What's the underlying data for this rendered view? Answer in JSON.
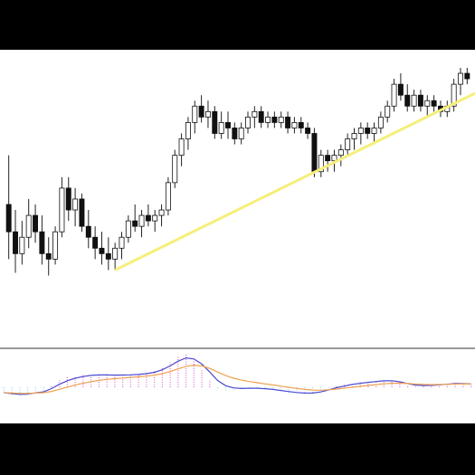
{
  "chart_data": [
    {
      "type": "candlestick",
      "title": "",
      "xlabel": "",
      "ylabel": "",
      "ylim": [
        0,
        100
      ],
      "grid": false,
      "candles": [
        [
          50,
          68,
          30,
          40
        ],
        [
          40,
          48,
          25,
          32
        ],
        [
          32,
          44,
          28,
          38
        ],
        [
          38,
          52,
          34,
          46
        ],
        [
          46,
          50,
          36,
          40
        ],
        [
          40,
          46,
          28,
          32
        ],
        [
          32,
          38,
          24,
          30
        ],
        [
          30,
          42,
          28,
          40
        ],
        [
          40,
          60,
          38,
          56
        ],
        [
          56,
          60,
          44,
          48
        ],
        [
          48,
          56,
          42,
          52
        ],
        [
          52,
          54,
          40,
          42
        ],
        [
          42,
          48,
          34,
          38
        ],
        [
          38,
          42,
          30,
          34
        ],
        [
          34,
          40,
          28,
          32
        ],
        [
          32,
          38,
          26,
          30
        ],
        [
          30,
          36,
          26,
          34
        ],
        [
          34,
          40,
          30,
          38
        ],
        [
          38,
          46,
          36,
          44
        ],
        [
          44,
          50,
          40,
          42
        ],
        [
          42,
          48,
          38,
          46
        ],
        [
          46,
          50,
          42,
          44
        ],
        [
          44,
          48,
          40,
          46
        ],
        [
          46,
          50,
          42,
          48
        ],
        [
          48,
          60,
          46,
          58
        ],
        [
          58,
          70,
          56,
          68
        ],
        [
          68,
          76,
          64,
          74
        ],
        [
          74,
          82,
          70,
          80
        ],
        [
          80,
          88,
          76,
          86
        ],
        [
          86,
          90,
          80,
          82
        ],
        [
          82,
          88,
          78,
          84
        ],
        [
          84,
          86,
          74,
          76
        ],
        [
          76,
          84,
          74,
          80
        ],
        [
          80,
          84,
          74,
          78
        ],
        [
          78,
          80,
          72,
          74
        ],
        [
          74,
          80,
          72,
          78
        ],
        [
          78,
          84,
          76,
          82
        ],
        [
          82,
          86,
          78,
          84
        ],
        [
          84,
          86,
          78,
          80
        ],
        [
          80,
          84,
          78,
          82
        ],
        [
          82,
          84,
          78,
          80
        ],
        [
          80,
          84,
          78,
          82
        ],
        [
          82,
          84,
          76,
          78
        ],
        [
          78,
          82,
          76,
          80
        ],
        [
          80,
          82,
          76,
          78
        ],
        [
          78,
          80,
          74,
          76
        ],
        [
          76,
          78,
          60,
          62
        ],
        [
          62,
          70,
          60,
          68
        ],
        [
          68,
          70,
          62,
          66
        ],
        [
          66,
          70,
          62,
          68
        ],
        [
          68,
          72,
          64,
          70
        ],
        [
          70,
          76,
          68,
          74
        ],
        [
          74,
          78,
          70,
          76
        ],
        [
          76,
          80,
          72,
          78
        ],
        [
          78,
          80,
          74,
          76
        ],
        [
          76,
          80,
          72,
          78
        ],
        [
          78,
          84,
          76,
          82
        ],
        [
          82,
          88,
          80,
          86
        ],
        [
          86,
          96,
          84,
          94
        ],
        [
          94,
          98,
          88,
          90
        ],
        [
          90,
          94,
          84,
          86
        ],
        [
          86,
          92,
          84,
          90
        ],
        [
          90,
          92,
          84,
          86
        ],
        [
          86,
          90,
          82,
          88
        ],
        [
          88,
          90,
          84,
          86
        ],
        [
          86,
          88,
          82,
          84
        ],
        [
          84,
          88,
          82,
          86
        ],
        [
          86,
          96,
          84,
          94
        ],
        [
          94,
          100,
          90,
          98
        ],
        [
          98,
          100,
          94,
          96
        ]
      ]
    },
    {
      "type": "bar",
      "title": "",
      "xlabel": "",
      "ylabel": "",
      "ylim": [
        -1,
        1
      ],
      "grid": false,
      "values": [
        -0.15,
        -0.2,
        -0.22,
        -0.18,
        -0.12,
        -0.1,
        0.05,
        0.2,
        0.28,
        0.32,
        0.34,
        0.36,
        0.35,
        0.34,
        0.33,
        0.34,
        0.35,
        0.36,
        0.4,
        0.45,
        0.55,
        0.7,
        0.85,
        0.9,
        0.75,
        0.5,
        0.2,
        -0.05,
        -0.1,
        -0.08,
        -0.05,
        -0.02,
        -0.03,
        -0.05,
        -0.08,
        -0.12,
        -0.15,
        -0.17,
        -0.18,
        -0.16,
        -0.1,
        -0.02,
        0.05,
        0.08,
        0.12,
        0.14,
        0.16,
        0.18,
        0.2,
        0.18,
        0.12,
        0.05,
        0.02,
        0.03,
        0.06,
        0.08,
        0.1,
        0.12,
        0.1,
        0.08
      ]
    }
  ]
}
